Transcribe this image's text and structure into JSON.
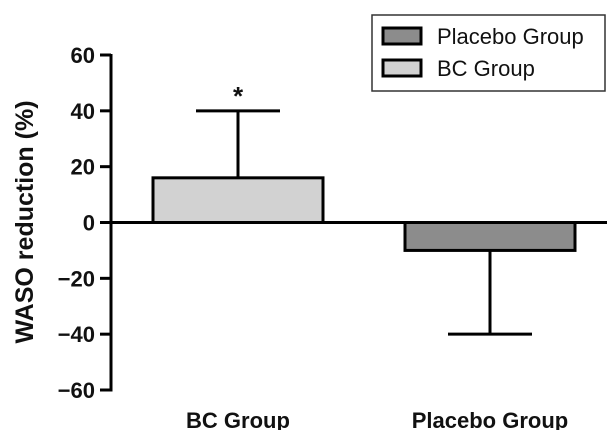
{
  "chart_data": {
    "type": "bar",
    "title": "",
    "xlabel": "",
    "ylabel": "WASO reduction (%)",
    "ylim": [
      -60,
      60
    ],
    "yticks": [
      60,
      40,
      20,
      0,
      -20,
      -40,
      -60
    ],
    "ytick_labels": [
      "60",
      "40",
      "20",
      "0",
      "−20",
      "−40",
      "−60"
    ],
    "categories": [
      "BC Group",
      "Placebo Group"
    ],
    "values": [
      16,
      -10
    ],
    "error_upper": [
      40,
      null
    ],
    "error_lower": [
      null,
      -40
    ],
    "bar_colors": [
      "#d2d2d2",
      "#8c8c8c"
    ],
    "annotations": [
      {
        "category": "BC Group",
        "text": "*"
      }
    ],
    "legend": {
      "placement": "top-right",
      "entries": [
        {
          "label": "Placebo Group",
          "color": "#8c8c8c"
        },
        {
          "label": "BC Group",
          "color": "#d2d2d2"
        }
      ]
    },
    "grid": false
  }
}
